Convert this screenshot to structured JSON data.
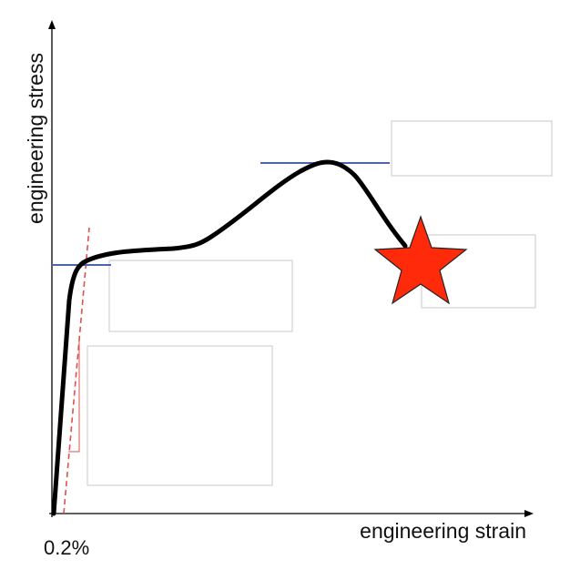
{
  "diagram": {
    "y_axis_label": "engineering stress",
    "x_axis_label": "engineering strain",
    "offset_tick_label": "0.2%",
    "answer_boxes": [
      "",
      "",
      "",
      "",
      ""
    ],
    "fracture_marker": "star-icon",
    "colors": {
      "curve": "#000000",
      "offset_line": "#e0504a",
      "level_lines": "#4a64b0",
      "star_fill": "#ff2a0a",
      "box_border": "#c8c8c8"
    }
  }
}
